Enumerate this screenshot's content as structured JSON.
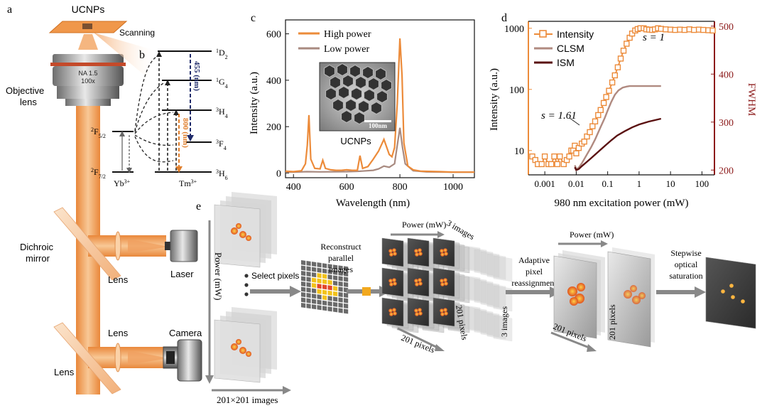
{
  "panels": {
    "a": "a",
    "b": "b",
    "c_spectrum": "c",
    "d": "d",
    "e": "e"
  },
  "colors": {
    "beam": "#f0a868",
    "beam_dark": "#e07f2c",
    "high": "#ec8b3a",
    "low": "#a88a80",
    "clsm": "#b08a80",
    "ism": "#5a1010",
    "axis_right": "#8c1a1a",
    "sample": "#f0974a"
  },
  "setup": {
    "sample_label": "UCNPs",
    "scanning_label": "Scanning",
    "objective_label_1": "Objective",
    "objective_label_2": "lens",
    "objective_na": "NA 1.5",
    "objective_mag": "100x",
    "dichroic_label_1": "Dichroic",
    "dichroic_label_2": "mirror",
    "lens_label_1": "Lens",
    "laser_label": "Laser",
    "lens_label_2": "Lens",
    "camera_label": "Camera",
    "lens_label_3": "Lens"
  },
  "energy": {
    "tm_levels": [
      "1D2",
      "1G4",
      "3H4",
      "3F4",
      "3H6"
    ],
    "tm_d2": "D",
    "tm_d2_pre": "1",
    "tm_d2_sub": "2",
    "tm_g4": "G",
    "tm_g4_pre": "1",
    "tm_g4_sub": "4",
    "tm_h4": "H",
    "tm_h4_pre": "3",
    "tm_h4_sub": "4",
    "tm_f4": "F",
    "tm_f4_pre": "3",
    "tm_f4_sub": "4",
    "tm_h6": "H",
    "tm_h6_pre": "3",
    "tm_h6_sub": "6",
    "yb_f52": "F",
    "yb_f52_pre": "2",
    "yb_f52_sub": "5/2",
    "yb_f72": "F",
    "yb_f72_pre": "2",
    "yb_f72_sub": "7/2",
    "yb_ion": "Yb",
    "yb_ion_sup": "3+",
    "tm_ion": "Tm",
    "tm_ion_sup": "3+",
    "emission_455": "455 (nm)",
    "emission_800": "800 (nm)"
  },
  "chart_data": [
    {
      "type": "line",
      "panel": "c",
      "title": "",
      "xlabel": "Wavelength (nm)",
      "ylabel": "Intensity (a.u.)",
      "xlim": [
        370,
        1080
      ],
      "ylim": [
        -20,
        660
      ],
      "xticks": [
        400,
        600,
        800,
        1000
      ],
      "yticks": [
        0,
        200,
        400,
        600
      ],
      "legend": [
        "High power",
        "Low power"
      ],
      "legend_position": "top-left",
      "inset_label": "UCNPs",
      "inset_scale": "100nm",
      "series": [
        {
          "name": "High power",
          "x": [
            370,
            400,
            430,
            445,
            452,
            458,
            465,
            480,
            500,
            510,
            520,
            540,
            560,
            580,
            600,
            620,
            640,
            650,
            660,
            680,
            700,
            720,
            740,
            760,
            770,
            780,
            790,
            800,
            808,
            815,
            830,
            850,
            880,
            950,
            1000,
            1080
          ],
          "y": [
            8,
            6,
            10,
            40,
            120,
            250,
            60,
            20,
            18,
            55,
            20,
            14,
            12,
            12,
            14,
            12,
            12,
            75,
            20,
            28,
            60,
            95,
            145,
            80,
            70,
            110,
            300,
            580,
            420,
            130,
            30,
            14,
            8,
            6,
            4,
            4
          ]
        },
        {
          "name": "Low power",
          "x": [
            370,
            400,
            450,
            500,
            600,
            650,
            700,
            720,
            740,
            760,
            780,
            790,
            800,
            810,
            820,
            850,
            900,
            1000,
            1080
          ],
          "y": [
            4,
            4,
            6,
            5,
            6,
            8,
            12,
            18,
            30,
            25,
            40,
            120,
            195,
            110,
            40,
            10,
            5,
            4,
            4
          ]
        }
      ]
    },
    {
      "type": "line",
      "panel": "d",
      "title": "",
      "xlabel": "980 nm excitation power (mW)",
      "ylabel": "Intensity (a.u.)",
      "ylabel_right": "FWHM",
      "xscale": "log",
      "yscale": "log",
      "xlim": [
        0.0003,
        250
      ],
      "ylim": [
        4,
        1300
      ],
      "ylim_right": [
        190,
        510
      ],
      "xticks": [
        0.001,
        0.01,
        0.1,
        1,
        10,
        100
      ],
      "xtick_labels": [
        "0.001",
        "0.01",
        "0.1",
        "1",
        "10",
        "100"
      ],
      "yticks": [
        10,
        100,
        1000
      ],
      "yticks_right": [
        200,
        300,
        400,
        500
      ],
      "legend": [
        "Intensity",
        "CLSM",
        "ISM"
      ],
      "legend_position": "top-left",
      "annotations": [
        "s = 1",
        "s = 1.61"
      ],
      "series": [
        {
          "name": "Intensity",
          "axis": "left",
          "x": [
            0.0004,
            0.0005,
            0.0006,
            0.0008,
            0.001,
            0.0013,
            0.0016,
            0.002,
            0.0025,
            0.003,
            0.004,
            0.005,
            0.006,
            0.007,
            0.008,
            0.009,
            0.01,
            0.012,
            0.015,
            0.018,
            0.022,
            0.027,
            0.033,
            0.04,
            0.05,
            0.06,
            0.075,
            0.09,
            0.11,
            0.14,
            0.17,
            0.21,
            0.26,
            0.32,
            0.4,
            0.5,
            0.6,
            0.75,
            0.9,
            1.1,
            1.4,
            1.7,
            2.1,
            2.6,
            3.2,
            4,
            5,
            7,
            10,
            14,
            20,
            28,
            40,
            56,
            80,
            110,
            160,
            220
          ],
          "y": [
            8,
            7,
            6,
            6,
            8,
            6,
            6,
            8,
            6,
            8,
            6,
            7,
            8,
            10,
            10,
            12,
            9,
            11,
            13,
            14,
            17,
            20,
            25,
            30,
            38,
            46,
            60,
            75,
            95,
            130,
            170,
            230,
            320,
            430,
            560,
            700,
            820,
            920,
            970,
            1000,
            1000,
            960,
            950,
            940,
            960,
            1000,
            980,
            960,
            950,
            940,
            950,
            940,
            960,
            940,
            950,
            940,
            930,
            920
          ]
        },
        {
          "name": "CLSM",
          "axis": "right",
          "x": [
            0.009,
            0.01,
            0.012,
            0.015,
            0.02,
            0.03,
            0.04,
            0.06,
            0.08,
            0.1,
            0.13,
            0.17,
            0.22,
            0.3,
            0.4,
            0.5,
            0.7,
            1,
            2,
            5
          ],
          "y": [
            210,
            202,
            205,
            214,
            228,
            248,
            264,
            290,
            308,
            324,
            342,
            357,
            366,
            372,
            374,
            375,
            375,
            375,
            375,
            375
          ]
        },
        {
          "name": "ISM",
          "axis": "right",
          "x": [
            0.009,
            0.01,
            0.012,
            0.015,
            0.02,
            0.03,
            0.05,
            0.08,
            0.13,
            0.2,
            0.35,
            0.6,
            1,
            2,
            5
          ],
          "y": [
            206,
            200,
            202,
            208,
            215,
            225,
            238,
            250,
            262,
            272,
            281,
            289,
            295,
            301,
            307
          ]
        }
      ]
    }
  ],
  "workflow": {
    "power_axis": "Power (mW)",
    "images_label": "201×201 images",
    "select_pixels": "Select pixels",
    "reconstruct_1": "Reconstruct",
    "reconstruct_2": "parallel",
    "reconstruct_3": "images",
    "power_top": "Power (mW)",
    "three_images_top": "3 images",
    "three_images_side": "3 images",
    "pixels_201_a": "201 pixels",
    "pixels_201_b": "201 pixels",
    "adaptive_1": "Adaptive",
    "adaptive_2": "pixel",
    "adaptive_3": "reassignment",
    "power_right": "Power (mW)",
    "pixels_201_c": "201 pixels",
    "pixels_201_d": "201 pixels",
    "stepwise_1": "Stepwise",
    "stepwise_2": "optical",
    "stepwise_3": "saturation"
  }
}
